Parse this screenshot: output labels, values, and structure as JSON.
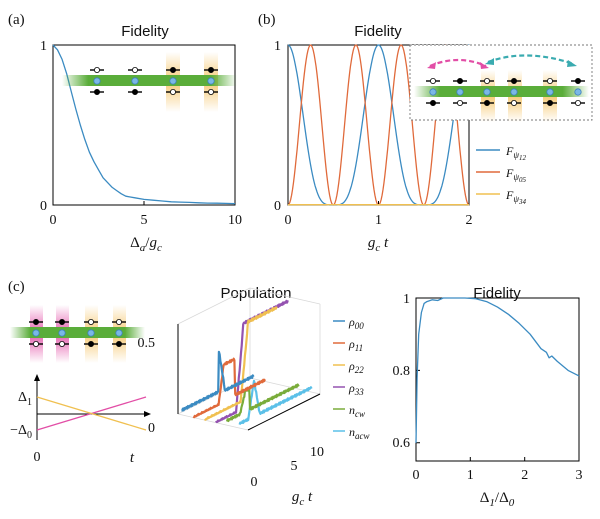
{
  "panels": {
    "a": {
      "label": "(a)"
    },
    "b": {
      "label": "(b)"
    },
    "c": {
      "label": "(c)"
    }
  },
  "colors": {
    "c1": "#3b8bc2",
    "c2": "#e06a3b",
    "c3": "#f0c050",
    "c4": "#9452b0",
    "c5": "#7aac3a",
    "c6": "#5bc0e8",
    "magenta": "#e24ea6",
    "teal": "#3aabb0",
    "waveguide": "#5aad3a"
  },
  "schematic_c": {
    "delta1": "Δ",
    "delta1_sub": "1",
    "neg_delta0": "−Δ",
    "neg_delta0_sub": "0",
    "zero": "0",
    "t": "t"
  },
  "chart_data": [
    {
      "id": "a",
      "type": "line",
      "title": "Fidelity",
      "xlabel": "Δ_a/g_c",
      "xlabel_parts": {
        "main": "Δ",
        "sub": "a",
        "div": "/",
        "g": "g",
        "gsub": "c"
      },
      "xlim": [
        0,
        10
      ],
      "ylim": [
        0,
        1
      ],
      "xticks": [
        "0",
        "5",
        "10"
      ],
      "yticks": [
        "0",
        "1"
      ],
      "series": [
        {
          "color": "#3b8bc2",
          "x": [
            0,
            0.25,
            0.5,
            0.75,
            1,
            1.25,
            1.5,
            1.75,
            2,
            2.25,
            2.5,
            2.75,
            3,
            3.25,
            3.5,
            3.75,
            4,
            4.25,
            4.5,
            5,
            5.5,
            6,
            6.5,
            7,
            7.5,
            8,
            8.5,
            9,
            9.5,
            10
          ],
          "y": [
            1.0,
            0.97,
            0.91,
            0.82,
            0.71,
            0.6,
            0.5,
            0.41,
            0.33,
            0.27,
            0.22,
            0.17,
            0.14,
            0.11,
            0.09,
            0.07,
            0.055,
            0.05,
            0.045,
            0.035,
            0.03,
            0.025,
            0.02,
            0.018,
            0.016,
            0.014,
            0.012,
            0.011,
            0.01,
            0.009
          ]
        }
      ]
    },
    {
      "id": "b",
      "type": "line",
      "title": "Fidelity",
      "xlabel": "g_c t",
      "xlim": [
        0,
        2
      ],
      "ylim": [
        0,
        1
      ],
      "xticks": [
        "0",
        "1",
        "2"
      ],
      "yticks": [
        "0",
        "1"
      ],
      "series": [
        {
          "name": "F",
          "sub": "ψ",
          "subsub": "12",
          "color": "#3b8bc2",
          "formula": "cos4",
          "x": [
            0,
            2
          ],
          "y": [
            1,
            1
          ]
        },
        {
          "name": "F",
          "sub": "ψ",
          "subsub": "05",
          "color": "#e06a3b",
          "formula": "sin2",
          "x": [
            0,
            2
          ],
          "y": [
            0,
            0
          ]
        },
        {
          "name": "F",
          "sub": "ψ",
          "subsub": "34",
          "color": "#f0c050",
          "formula": "zero",
          "x": [
            0,
            2
          ],
          "y": [
            0,
            0
          ]
        }
      ]
    },
    {
      "id": "c_population",
      "type": "line",
      "title": "Population",
      "xlabel": "g_c t",
      "zticks": [
        "0",
        "0.5"
      ],
      "tticks": [
        "0",
        "5",
        "10"
      ],
      "series": [
        {
          "name": "ρ",
          "sub": "00",
          "color": "#3b8bc2"
        },
        {
          "name": "ρ",
          "sub": "11",
          "color": "#e06a3b"
        },
        {
          "name": "ρ",
          "sub": "22",
          "color": "#f0c050"
        },
        {
          "name": "ρ",
          "sub": "33",
          "color": "#9452b0"
        },
        {
          "name": "n",
          "sub": "cw",
          "color": "#7aac3a"
        },
        {
          "name": "n",
          "sub": "acw",
          "color": "#5bc0e8"
        }
      ]
    },
    {
      "id": "c_fidelity",
      "type": "line",
      "title": "Fidelity",
      "xlabel": "Δ_1/Δ_0",
      "xlim": [
        0,
        3
      ],
      "ylim": [
        0.55,
        1.0
      ],
      "xticks": [
        "0",
        "1",
        "2",
        "3"
      ],
      "yticks": [
        "0.6",
        "0.8",
        "1"
      ],
      "series": [
        {
          "color": "#3b8bc2",
          "x": [
            0,
            0.02,
            0.05,
            0.1,
            0.15,
            0.2,
            0.3,
            0.4,
            0.5,
            0.7,
            0.9,
            1.1,
            1.3,
            1.5,
            1.7,
            1.9,
            2.1,
            2.3,
            2.4,
            2.45,
            2.5,
            2.6,
            2.8,
            3.0
          ],
          "y": [
            0.6,
            0.78,
            0.9,
            0.96,
            0.985,
            0.99,
            0.995,
            0.993,
            1.0,
            1.0,
            1.0,
            0.998,
            0.99,
            0.975,
            0.955,
            0.93,
            0.9,
            0.86,
            0.85,
            0.835,
            0.84,
            0.825,
            0.8,
            0.785
          ]
        }
      ]
    }
  ]
}
